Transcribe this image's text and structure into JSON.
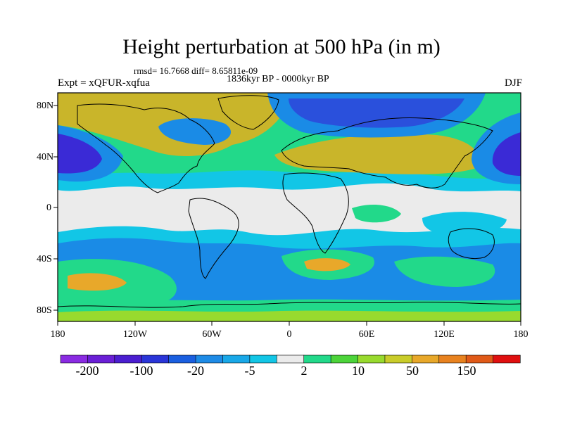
{
  "title": "Height perturbation at 500 hPa (in m)",
  "stats": "rmsd= 16.7668 diff= 8.65811e-09",
  "experiment": "Expt = xQFUR-xqfua",
  "period": "1836kyr BP - 0000kyr BP",
  "season": "DJF",
  "lat_labels": [
    "80N",
    "40N",
    "0",
    "40S",
    "80S"
  ],
  "lon_labels": [
    "180",
    "120W",
    "60W",
    "0",
    "60E",
    "120E",
    "180"
  ],
  "colorbar": {
    "labels": [
      "-200",
      "-100",
      "-20",
      "-5",
      "2",
      "10",
      "50",
      "150"
    ],
    "colors": [
      "#8a2be2",
      "#6a1fd6",
      "#4b1ed0",
      "#2a35d8",
      "#1a5fe0",
      "#1e8be6",
      "#19a8e8",
      "#12c6e6",
      "#ebebeb",
      "#22d98a",
      "#4cd43a",
      "#98da2e",
      "#c9cc2a",
      "#e8a82a",
      "#e8821f",
      "#e05a18",
      "#e01010"
    ]
  },
  "field_colors": {
    "neutral": "#ebebeb",
    "light_blue": "#12c6e6",
    "mid_blue": "#1a8be6",
    "blue": "#2a50dc",
    "dark_blue": "#3a2ad6",
    "green": "#22d98a",
    "yellow_green": "#98da2e",
    "olive": "#c9b52a",
    "orange": "#e8a82a",
    "coast": "#000000"
  }
}
